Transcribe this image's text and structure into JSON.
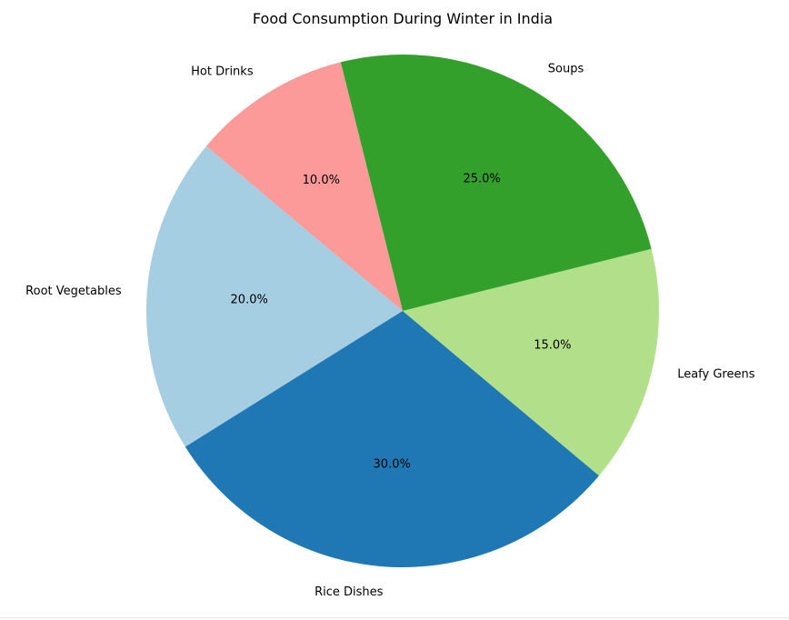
{
  "chart_data": {
    "type": "pie",
    "title": "Food Consumption During Winter in India",
    "slices": [
      {
        "label": "Root Vegetables",
        "value": 20.0,
        "pct_label": "20.0%",
        "color": "#a6cee3"
      },
      {
        "label": "Rice Dishes",
        "value": 30.0,
        "pct_label": "30.0%",
        "color": "#1f78b4"
      },
      {
        "label": "Leafy Greens",
        "value": 15.0,
        "pct_label": "15.0%",
        "color": "#b2df8a"
      },
      {
        "label": "Soups",
        "value": 25.0,
        "pct_label": "25.0%",
        "color": "#33a02c"
      },
      {
        "label": "Hot Drinks",
        "value": 10.0,
        "pct_label": "10.0%",
        "color": "#fb9a99"
      }
    ],
    "start_angle_deg": 140,
    "direction": "counterclockwise",
    "legend": "none"
  }
}
